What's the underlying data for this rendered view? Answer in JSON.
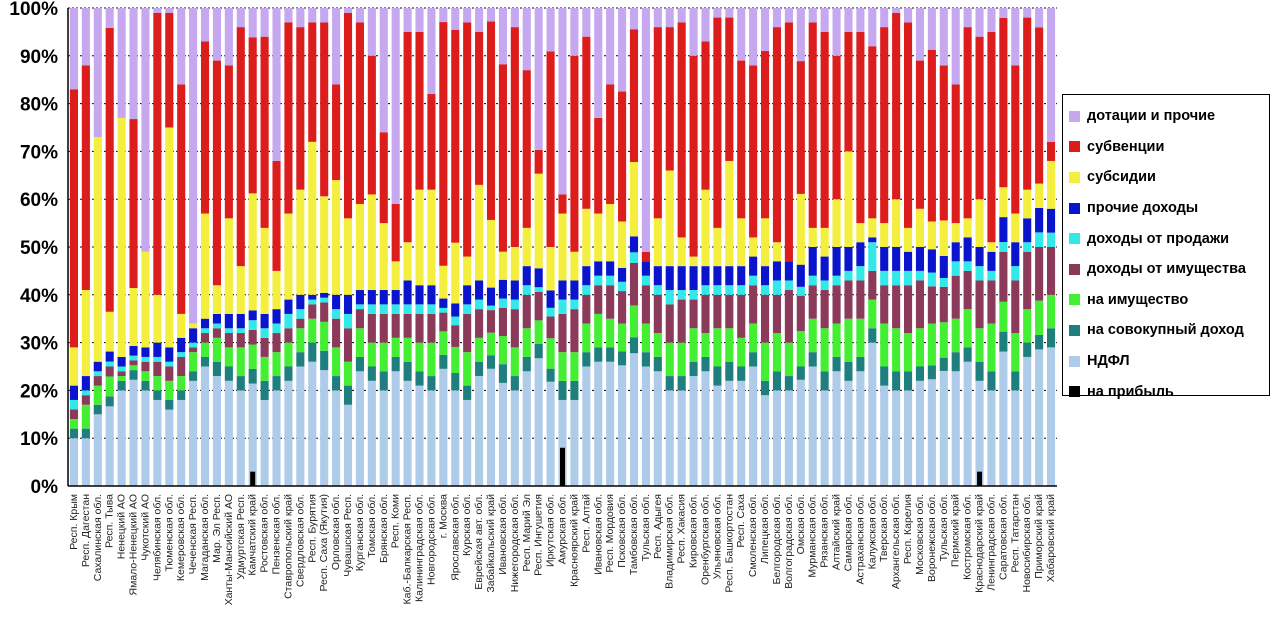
{
  "chart_data": {
    "type": "bar",
    "stacked": "percent",
    "yticks": [
      "0%",
      "10%",
      "20%",
      "30%",
      "40%",
      "50%",
      "60%",
      "70%",
      "80%",
      "90%",
      "100%"
    ],
    "ylim": [
      0,
      100
    ],
    "grid": "horizontal dashed",
    "legend_position": "right",
    "categories": [
      "Респ. Крым",
      "Респ. Дагестан",
      "Сахалинская обл.",
      "Респ. Тыва",
      "Ненецкий АО",
      "Ямало-Ненецкий АО",
      "Чукотский АО",
      "Челябинская обл.",
      "Тюменская обл.",
      "Кемеровская обл.",
      "Чеченская Респ.",
      "Магаданская обл.",
      "Мар. Эл Респ.",
      "Ханты-Мансийский АО",
      "Удмуртская Респ.",
      "Камчатский край",
      "Ростовская обл.",
      "Пензенская обл.",
      "Ставропольский край",
      "Свердловская обл.",
      "Респ. Бурятия",
      "Респ. Саха (Якутия)",
      "Орловская обл.",
      "Чувашская Респ.",
      "Курганская обл.",
      "Томская обл.",
      "Брянская обл.",
      "Респ. Коми",
      "Каб.-Балкарская Респ.",
      "Калининградская обл.",
      "Новгородская обл.",
      "г. Москва",
      "Ярославская обл.",
      "Курская обл.",
      "Еврейская авт. обл.",
      "Забайкальский край",
      "Ивановская обл.",
      "Нижегородская обл.",
      "Респ. Марий Эл",
      "Респ. Ингушетия",
      "Иркутская обл.",
      "Амурская обл.",
      "Красноярский край",
      "Респ. Алтай",
      "Ивановская обл.",
      "Респ. Мордовия",
      "Псковская обл.",
      "Тамбовская обл.",
      "Тульская обл.",
      "Респ. Адыгея",
      "Владимирская обл.",
      "Респ. Хакасия",
      "Кировская обл.",
      "Оренбургская обл.",
      "Ульяновская обл.",
      "Респ. Башкортостан",
      "Респ. Саха",
      "Смоленская обл.",
      "Липецкая обл.",
      "Белгородская обл.",
      "Волгоградская обл.",
      "Омская обл.",
      "Мурманская обл.",
      "Рязанская обл.",
      "Алтайский край",
      "Самарская обл.",
      "Астраханская обл.",
      "Калужская обл.",
      "Тверская обл.",
      "Архангельская обл.",
      "Респ. Карелия",
      "Московская обл.",
      "Воронежская обл.",
      "Тульская обл.",
      "Пермский край",
      "Костромская обл.",
      "Краснодарский край",
      "Ленинградская обл.",
      "Саратовская обл.",
      "Респ. Татарстан",
      "Новосибирская обл.",
      "Приморский край",
      "Хабаровский край"
    ],
    "series": [
      {
        "name": "на прибыль",
        "color": "#000000",
        "values": [
          0,
          0,
          0,
          0,
          0,
          0,
          0,
          0,
          0,
          0,
          0,
          0,
          0,
          0,
          0,
          0,
          0,
          0,
          0,
          0,
          0,
          0,
          0,
          0,
          0,
          0,
          0,
          0,
          0,
          0,
          0,
          0,
          0,
          0,
          0,
          0,
          0,
          0,
          0,
          0,
          0,
          0,
          0,
          0,
          0,
          0,
          0,
          0,
          0,
          0,
          0,
          0,
          0,
          0,
          0,
          0,
          0,
          0,
          0,
          0,
          0,
          0,
          0,
          0,
          0,
          0,
          0,
          0,
          0,
          0,
          0,
          0,
          0,
          0,
          0,
          0,
          0,
          0,
          0,
          0,
          0,
          0,
          0
        ]
      },
      {
        "name": "НДФЛ",
        "color": "#aecbea",
        "values": [
          10,
          10,
          15,
          16,
          20,
          22,
          20,
          18,
          16,
          18,
          22,
          25,
          23,
          22,
          20,
          21,
          18,
          20,
          22,
          25,
          26,
          24,
          20,
          17,
          24,
          22,
          20,
          24,
          22,
          21,
          20,
          25,
          22,
          18,
          23,
          26,
          22,
          20,
          24,
          27,
          24,
          18,
          18,
          25,
          26,
          26,
          26,
          25,
          25,
          24,
          20,
          20,
          23,
          24,
          21,
          22,
          22,
          25,
          19,
          20,
          20,
          24,
          25,
          20,
          24,
          22,
          24,
          30,
          21,
          20,
          20,
          22,
          23,
          26,
          24,
          26,
          22,
          20,
          27,
          20,
          27,
          28,
          29
        ]
      },
      {
        "name": "на совокупный доход",
        "color": "#1f7f7f",
        "values": [
          2,
          2,
          2,
          2,
          2,
          2,
          2,
          2,
          2,
          2,
          2,
          2,
          3,
          3,
          3,
          3,
          4,
          3,
          3,
          3,
          4,
          4,
          3,
          4,
          3,
          3,
          4,
          3,
          4,
          3,
          3,
          3,
          4,
          3,
          3,
          3,
          4,
          3,
          3,
          3,
          3,
          4,
          4,
          3,
          3,
          3,
          3,
          3,
          3,
          3,
          3,
          3,
          3,
          3,
          4,
          4,
          3,
          3,
          3,
          4,
          3,
          3,
          3,
          4,
          3,
          4,
          3,
          3,
          4,
          4,
          4,
          3,
          3,
          3,
          4,
          3,
          4,
          4,
          4,
          4,
          3,
          3,
          4
        ]
      },
      {
        "name": "на имущество",
        "color": "#44ee33",
        "values": [
          2,
          5,
          4,
          4,
          1,
          1,
          2,
          3,
          4,
          3,
          4,
          3,
          5,
          4,
          6,
          5,
          5,
          5,
          5,
          5,
          5,
          6,
          6,
          5,
          6,
          5,
          6,
          4,
          5,
          6,
          7,
          5,
          6,
          7,
          5,
          5,
          6,
          6,
          6,
          5,
          7,
          6,
          6,
          6,
          7,
          6,
          6,
          6,
          6,
          5,
          7,
          7,
          7,
          5,
          8,
          7,
          6,
          6,
          8,
          8,
          7,
          8,
          7,
          9,
          7,
          9,
          8,
          6,
          9,
          9,
          8,
          8,
          9,
          8,
          7,
          8,
          7,
          10,
          6,
          8,
          7,
          7,
          7
        ]
      },
      {
        "name": "доходы от имущества",
        "color": "#8b3a5a",
        "values": [
          2,
          2,
          2,
          2,
          1,
          1,
          2,
          3,
          3,
          4,
          1,
          2,
          2,
          3,
          3,
          3,
          4,
          4,
          3,
          2,
          3,
          4,
          6,
          7,
          4,
          6,
          6,
          5,
          5,
          6,
          6,
          4,
          5,
          8,
          6,
          5,
          6,
          8,
          7,
          6,
          5,
          8,
          9,
          6,
          6,
          7,
          7,
          8,
          8,
          8,
          8,
          9,
          6,
          8,
          7,
          7,
          9,
          8,
          10,
          8,
          11,
          8,
          7,
          8,
          8,
          8,
          8,
          6,
          8,
          9,
          10,
          10,
          8,
          8,
          9,
          8,
          10,
          9,
          10,
          11,
          12,
          11,
          10
        ]
      },
      {
        "name": "доходы от продажи",
        "color": "#33e8e8",
        "values": [
          2,
          1,
          1,
          1,
          1,
          1,
          1,
          1,
          1,
          1,
          1,
          1,
          1,
          1,
          1,
          2,
          2,
          2,
          3,
          2,
          1,
          1,
          2,
          3,
          1,
          2,
          2,
          2,
          2,
          2,
          2,
          1,
          2,
          2,
          2,
          1,
          2,
          2,
          2,
          1,
          2,
          3,
          2,
          2,
          2,
          2,
          2,
          2,
          2,
          2,
          3,
          2,
          2,
          2,
          2,
          2,
          2,
          2,
          2,
          3,
          2,
          2,
          2,
          2,
          2,
          2,
          3,
          6,
          3,
          3,
          3,
          2,
          3,
          2,
          3,
          2,
          3,
          2,
          2,
          3,
          2,
          3,
          3
        ]
      },
      {
        "name": "прочие доходы",
        "color": "#0a14cc",
        "values": [
          3,
          3,
          2,
          2,
          2,
          2,
          2,
          3,
          3,
          3,
          3,
          2,
          2,
          3,
          3,
          2,
          3,
          3,
          3,
          3,
          1,
          1,
          3,
          4,
          3,
          3,
          3,
          3,
          5,
          4,
          4,
          2,
          3,
          4,
          4,
          4,
          4,
          4,
          4,
          4,
          4,
          4,
          4,
          4,
          3,
          3,
          3,
          3,
          3,
          4,
          5,
          5,
          5,
          4,
          4,
          4,
          4,
          4,
          4,
          4,
          4,
          5,
          6,
          5,
          6,
          5,
          5,
          1,
          5,
          5,
          4,
          5,
          5,
          5,
          4,
          5,
          4,
          4,
          5,
          5,
          5,
          5,
          5
        ]
      },
      {
        "name": "субсидии",
        "color": "#f4ee3e",
        "values": [
          8,
          18,
          47,
          8,
          50,
          12,
          20,
          10,
          46,
          5,
          1,
          22,
          6,
          20,
          10,
          24,
          18,
          8,
          18,
          22,
          32,
          20,
          24,
          16,
          18,
          20,
          14,
          6,
          8,
          20,
          20,
          7,
          14,
          6,
          20,
          15,
          6,
          7,
          8,
          20,
          10,
          14,
          6,
          12,
          10,
          12,
          10,
          14,
          0,
          10,
          20,
          6,
          2,
          16,
          8,
          22,
          10,
          4,
          10,
          4,
          0,
          16,
          4,
          6,
          10,
          20,
          4,
          4,
          5,
          10,
          5,
          8,
          6,
          8,
          4,
          4,
          10,
          2,
          6,
          6,
          6,
          5,
          10
        ]
      },
      {
        "name": "субвенции",
        "color": "#dd1c1c",
        "values": [
          54,
          47,
          0,
          57,
          0,
          35,
          0,
          59,
          24,
          48,
          0,
          36,
          47,
          32,
          50,
          32,
          40,
          23,
          40,
          34,
          25,
          36,
          20,
          43,
          38,
          29,
          19,
          12,
          44,
          33,
          20,
          52,
          49,
          49,
          32,
          44,
          40,
          46,
          33,
          5,
          45,
          4,
          41,
          36,
          20,
          25,
          28,
          25,
          2,
          40,
          30,
          45,
          42,
          31,
          44,
          30,
          33,
          36,
          35,
          45,
          50,
          30,
          43,
          41,
          30,
          25,
          40,
          36,
          41,
          39,
          43,
          31,
          37,
          35,
          29,
          40,
          34,
          44,
          34,
          31,
          36,
          32,
          4
        ]
      },
      {
        "name": "дотации и прочие",
        "color": "#c6a8f0",
        "values": [
          17,
          12,
          27,
          4,
          23,
          23,
          51,
          1,
          1,
          16,
          66,
          7,
          11,
          12,
          4,
          6,
          6,
          32,
          3,
          4,
          3,
          3,
          16,
          1,
          3,
          10,
          26,
          41,
          5,
          5,
          18,
          3,
          5,
          3,
          5,
          3,
          12,
          4,
          13,
          30,
          10,
          39,
          10,
          6,
          23,
          16,
          18,
          4,
          51,
          4,
          4,
          3,
          10,
          7,
          2,
          2,
          11,
          12,
          9,
          4,
          3,
          12,
          3,
          5,
          10,
          5,
          5,
          8,
          4,
          1,
          3,
          11,
          9,
          13,
          16,
          4,
          6,
          5,
          2,
          12,
          2,
          4,
          28
        ]
      }
    ],
    "markers": [
      {
        "category_index": 15,
        "value": 3
      },
      {
        "category_index": 41,
        "value": 8
      },
      {
        "category_index": 76,
        "value": 3
      }
    ]
  },
  "legend": {
    "items": [
      {
        "label": "дотации и прочие",
        "color": "#c6a8f0"
      },
      {
        "label": "субвенции",
        "color": "#dd1c1c"
      },
      {
        "label": "субсидии",
        "color": "#f4ee3e"
      },
      {
        "label": "прочие доходы",
        "color": "#0a14cc"
      },
      {
        "label": "доходы от продажи",
        "color": "#33e8e8"
      },
      {
        "label": "доходы от имущества",
        "color": "#8b3a5a"
      },
      {
        "label": "на имущество",
        "color": "#44ee33"
      },
      {
        "label": "на совокупный доход",
        "color": "#1f7f7f"
      },
      {
        "label": "НДФЛ",
        "color": "#aecbea"
      },
      {
        "label": "на прибыль",
        "color": "#000000"
      }
    ]
  }
}
